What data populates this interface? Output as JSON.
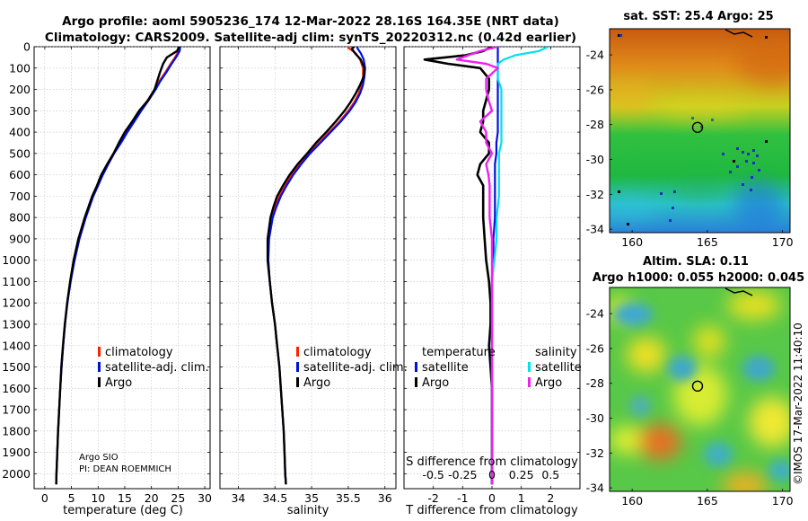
{
  "title": {
    "line1": "Argo profile: aoml 5905236_174 12-Mar-2022 28.16S 164.35E (NRT data)",
    "line2": "Climatology: CARS2009. Satellite-adj clim: synTS_20220312.nc (0.42d earlier)"
  },
  "colors": {
    "climatology": "#ff2000",
    "satellite": "#0010e0",
    "argo": "#000000",
    "sat_cyan": "#00e0ee",
    "argo_magenta": "#ee22ee"
  },
  "chart_data": [
    {
      "type": "line",
      "id": "temperature",
      "xlabel": "temperature (deg C)",
      "ylabel": "",
      "xlim": [
        -2,
        31
      ],
      "ylim": [
        2070,
        0
      ],
      "xticks": [
        0,
        5,
        10,
        15,
        20,
        25,
        30
      ],
      "yticks": [
        0,
        100,
        200,
        300,
        400,
        500,
        600,
        700,
        800,
        900,
        1000,
        1100,
        1200,
        1300,
        1400,
        1500,
        1600,
        1700,
        1800,
        1900,
        2000
      ],
      "legend": [
        "climatology",
        "satellite-adj. clim.",
        "Argo"
      ],
      "annotation": [
        "Argo SIO",
        "PI: DEAN ROEMMICH"
      ],
      "y": [
        0,
        20,
        50,
        80,
        120,
        160,
        200,
        250,
        300,
        350,
        400,
        450,
        500,
        550,
        600,
        650,
        700,
        800,
        900,
        1000,
        1100,
        1200,
        1300,
        1400,
        1500,
        1600,
        1700,
        1800,
        1900,
        2000,
        2050
      ],
      "series": [
        {
          "name": "climatology",
          "values": [
            25.2,
            25.1,
            24.4,
            23.6,
            22.6,
            21.5,
            20.6,
            19.3,
            17.9,
            16.6,
            15.3,
            14.1,
            12.9,
            11.8,
            10.8,
            9.9,
            9.0,
            7.6,
            6.4,
            5.5,
            4.8,
            4.2,
            3.8,
            3.45,
            3.15,
            2.9,
            2.7,
            2.5,
            2.35,
            2.2,
            2.15
          ]
        },
        {
          "name": "satellite-adj. clim.",
          "values": [
            25.4,
            25.3,
            24.6,
            23.8,
            22.8,
            21.7,
            20.8,
            19.5,
            18.1,
            16.8,
            15.5,
            14.3,
            13.0,
            11.9,
            10.9,
            10.0,
            9.1,
            7.7,
            6.5,
            5.6,
            4.85,
            4.25,
            3.8,
            3.45,
            3.15,
            2.9,
            2.7,
            2.5,
            2.35,
            2.2,
            2.15
          ]
        },
        {
          "name": "Argo",
          "values": [
            25.2,
            24.8,
            22.9,
            22.2,
            21.6,
            21.1,
            20.6,
            19.4,
            17.7,
            16.4,
            15.0,
            13.9,
            12.9,
            11.7,
            10.6,
            9.8,
            8.9,
            7.5,
            6.3,
            5.4,
            4.75,
            4.2,
            3.75,
            3.4,
            3.1,
            2.9,
            2.7,
            2.5,
            2.35,
            2.2,
            2.15
          ]
        }
      ]
    },
    {
      "type": "line",
      "id": "salinity",
      "xlabel": "salinity",
      "ylabel": "",
      "xlim": [
        33.75,
        36.15
      ],
      "ylim": [
        2070,
        0
      ],
      "xticks": [
        34,
        34.5,
        35,
        35.5,
        36
      ],
      "legend": [
        "climatology",
        "satellite-adj. clim.",
        "Argo"
      ],
      "y": [
        0,
        10,
        30,
        60,
        100,
        140,
        180,
        220,
        260,
        300,
        350,
        400,
        450,
        500,
        550,
        600,
        650,
        700,
        750,
        800,
        900,
        1000,
        1100,
        1200,
        1300,
        1400,
        1500,
        1600,
        1700,
        1800,
        1900,
        2000,
        2050
      ],
      "series": [
        {
          "name": "climatology",
          "values": [
            35.5,
            35.52,
            35.6,
            35.66,
            35.7,
            35.7,
            35.68,
            35.64,
            35.58,
            35.5,
            35.38,
            35.24,
            35.1,
            34.96,
            34.84,
            34.73,
            34.64,
            34.56,
            34.5,
            34.46,
            34.41,
            34.41,
            34.43,
            34.46,
            34.5,
            34.53,
            34.56,
            34.58,
            34.6,
            34.62,
            34.63,
            34.64,
            34.65
          ]
        },
        {
          "name": "satellite-adj. clim.",
          "values": [
            35.62,
            35.63,
            35.67,
            35.71,
            35.73,
            35.72,
            35.7,
            35.66,
            35.6,
            35.52,
            35.4,
            35.26,
            35.12,
            34.98,
            34.86,
            34.75,
            34.66,
            34.58,
            34.52,
            34.47,
            34.42,
            34.41,
            34.43,
            34.46,
            34.5,
            34.53,
            34.56,
            34.58,
            34.6,
            34.62,
            34.63,
            34.64,
            34.65
          ]
        },
        {
          "name": "Argo",
          "values": [
            35.58,
            35.55,
            35.59,
            35.67,
            35.72,
            35.71,
            35.66,
            35.6,
            35.53,
            35.45,
            35.33,
            35.2,
            35.06,
            34.94,
            34.81,
            34.7,
            34.61,
            34.53,
            34.48,
            34.44,
            34.4,
            34.4,
            34.43,
            34.46,
            34.5,
            34.53,
            34.56,
            34.58,
            34.6,
            34.62,
            34.63,
            34.64,
            34.65
          ]
        }
      ]
    },
    {
      "type": "line",
      "id": "difference",
      "xlabel": "T difference from climatology",
      "xlabel2": "S difference from climatology",
      "xlim": [
        -3,
        3
      ],
      "ylim": [
        2070,
        0
      ],
      "xticks": [
        -2,
        -1,
        0,
        1,
        2
      ],
      "xticks2_labels": [
        "-0.5",
        "-0.25",
        "0",
        "0.25",
        "0.5"
      ],
      "xticks2_values": [
        -2,
        -1,
        0,
        1,
        2
      ],
      "legend_headers": [
        "temperature",
        "salinity"
      ],
      "legend_left": [
        "satellite",
        "Argo"
      ],
      "legend_right": [
        "satellite",
        "Argo"
      ],
      "y": [
        0,
        20,
        40,
        60,
        80,
        100,
        150,
        200,
        250,
        300,
        350,
        400,
        450,
        500,
        550,
        600,
        650,
        700,
        800,
        900,
        1000,
        1100,
        1200,
        1300,
        1400,
        1500,
        1600,
        1700,
        1800,
        1900,
        2000,
        2050
      ],
      "series": [
        {
          "name": "temperature satellite",
          "values": [
            0.2,
            0.2,
            0.2,
            0.2,
            0.2,
            0.2,
            0.2,
            0.2,
            0.2,
            0.2,
            0.2,
            0.2,
            0.15,
            0.15,
            0.1,
            0.1,
            0.1,
            0.1,
            0.1,
            0.05,
            0.05,
            0.0,
            0.0,
            0.0,
            0.0,
            0.0,
            0.0,
            0.0,
            0.0,
            0.0,
            0.0,
            0.0
          ]
        },
        {
          "name": "salinity satellite",
          "values": [
            0.48,
            0.4,
            0.2,
            0.1,
            0.05,
            0.05,
            0.05,
            0.08,
            0.08,
            0.08,
            0.08,
            0.08,
            0.08,
            0.06,
            0.06,
            0.06,
            0.06,
            0.06,
            0.04,
            0.04,
            0.02,
            0.0,
            0.0,
            0.0,
            0.0,
            0.0,
            0.0,
            0.0,
            0.0,
            0.0,
            0.0,
            0.0
          ]
        },
        {
          "name": "temperature Argo",
          "values": [
            0.0,
            -0.3,
            -0.9,
            -2.3,
            -1.5,
            -0.4,
            -0.1,
            -0.1,
            -0.2,
            -0.3,
            -0.3,
            -0.4,
            -0.1,
            -0.1,
            -0.4,
            -0.5,
            -0.3,
            -0.3,
            -0.3,
            -0.25,
            -0.2,
            -0.1,
            -0.05,
            -0.05,
            -0.1,
            -0.05,
            0.0,
            0.0,
            0.0,
            0.0,
            0.0,
            0.0
          ]
        },
        {
          "name": "salinity Argo",
          "values": [
            0.05,
            -0.1,
            -0.2,
            -0.3,
            -0.05,
            0.05,
            -0.05,
            -0.05,
            -0.03,
            0.0,
            -0.1,
            -0.05,
            -0.05,
            0.0,
            -0.05,
            -0.03,
            -0.02,
            -0.02,
            -0.02,
            0.0,
            0.0,
            0.0,
            0.0,
            0.0,
            0.0,
            0.0,
            0.0,
            0.0,
            0.0,
            0.0,
            0.0,
            0.0
          ]
        }
      ]
    },
    {
      "type": "heatmap",
      "id": "sst_map",
      "title": "sat. SST: 25.4 Argo: 25",
      "xlim": [
        158.5,
        170.5
      ],
      "ylim": [
        -34.2,
        -22.5
      ],
      "xticks": [
        160,
        165,
        170
      ],
      "yticks": [
        -24,
        -26,
        -28,
        -30,
        -32,
        -34
      ],
      "marker": {
        "lon": 164.35,
        "lat": -28.16
      }
    },
    {
      "type": "heatmap",
      "id": "sla_map",
      "title_line1": "Altim. SLA: 0.11",
      "title_line2": "Argo h1000: 0.055 h2000: 0.045",
      "xlim": [
        158.5,
        170.5
      ],
      "ylim": [
        -34.2,
        -22.5
      ],
      "xticks": [
        160,
        165,
        170
      ],
      "yticks": [
        -24,
        -26,
        -28,
        -30,
        -32,
        -34
      ],
      "marker": {
        "lon": 164.35,
        "lat": -28.16
      }
    }
  ],
  "footer": {
    "imos_stamp": "©IMOS 17-Mar-2022 11:40:10"
  }
}
